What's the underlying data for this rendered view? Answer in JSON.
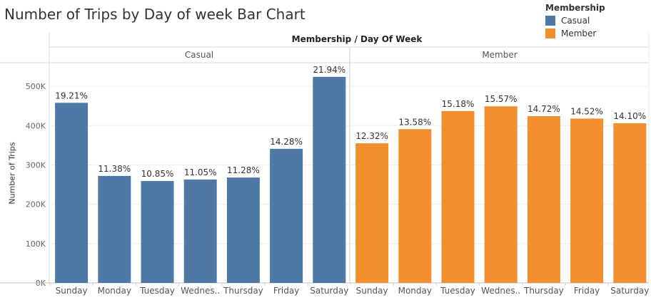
{
  "title": "Number of Trips by Day of week Bar Chart",
  "legend": {
    "title": "Membership",
    "items": [
      {
        "label": "Casual",
        "color": "#4e79a7"
      },
      {
        "label": "Member",
        "color": "#f28e2b"
      }
    ]
  },
  "header": {
    "title": "Membership  /  Day Of Week",
    "panes": [
      "Casual",
      "Member"
    ]
  },
  "chart_data": {
    "type": "bar",
    "title": "Number of Trips by Day of week Bar Chart",
    "xlabel": "",
    "ylabel": "Number of Trips",
    "ylim": [
      0,
      560000
    ],
    "yticks": [
      0,
      100000,
      200000,
      300000,
      400000,
      500000
    ],
    "ytick_labels": [
      "0K",
      "100K",
      "200K",
      "300K",
      "400K",
      "500K"
    ],
    "grid": true,
    "legend_position": "top-right",
    "categories": [
      "Sunday",
      "Monday",
      "Tuesday",
      "Wednes..",
      "Thursday",
      "Friday",
      "Saturday"
    ],
    "series": [
      {
        "name": "Casual",
        "color": "#4e79a7",
        "values": [
          458000,
          272000,
          259000,
          263000,
          268000,
          341000,
          524000
        ],
        "labels": [
          "19.21%",
          "11.38%",
          "10.85%",
          "11.05%",
          "11.28%",
          "14.28%",
          "21.94%"
        ]
      },
      {
        "name": "Member",
        "color": "#f28e2b",
        "values": [
          355000,
          391000,
          437000,
          449000,
          424000,
          418000,
          406000
        ],
        "labels": [
          "12.32%",
          "13.58%",
          "15.18%",
          "15.57%",
          "14.72%",
          "14.52%",
          "14.10%"
        ]
      }
    ]
  }
}
